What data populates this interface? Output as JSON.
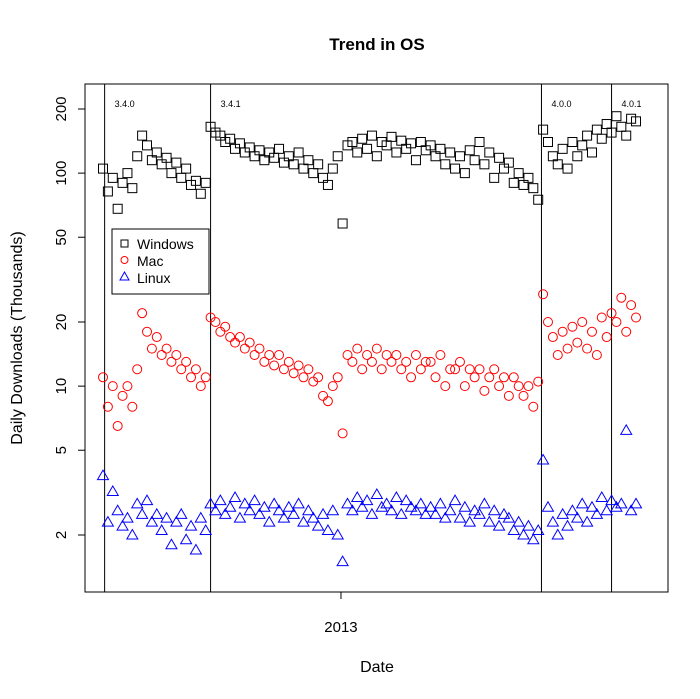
{
  "chart_data": {
    "type": "scatter",
    "title": "Trend in OS",
    "xlabel": "Date",
    "ylabel": "Daily Downloads (Thousands)",
    "yscale": "log",
    "yticks": [
      2,
      5,
      10,
      20,
      50,
      100,
      200
    ],
    "x_unit": "days since start of series",
    "xlim": [
      0,
      327
    ],
    "xticks": [
      {
        "x": 146,
        "label": "2013"
      }
    ],
    "releases": [
      {
        "x": 1,
        "label": "3.4.0"
      },
      {
        "x": 66,
        "label": "3.4.1"
      },
      {
        "x": 269,
        "label": "4.0.0"
      },
      {
        "x": 312,
        "label": "4.0.1"
      }
    ],
    "legend": {
      "position": "top-left",
      "entries": [
        "Windows",
        "Mac",
        "Linux"
      ]
    },
    "x_step": 3,
    "series": [
      {
        "name": "Windows",
        "color": "#000000",
        "marker": "square",
        "values": [
          105,
          82,
          95,
          68,
          90,
          100,
          85,
          120,
          150,
          135,
          115,
          125,
          110,
          118,
          100,
          112,
          95,
          105,
          88,
          92,
          80,
          90,
          165,
          155,
          150,
          140,
          145,
          130,
          138,
          125,
          132,
          120,
          128,
          115,
          125,
          118,
          130,
          112,
          120,
          110,
          125,
          105,
          115,
          100,
          110,
          95,
          88,
          105,
          120,
          58,
          135,
          140,
          125,
          145,
          130,
          150,
          120,
          140,
          135,
          148,
          125,
          142,
          130,
          138,
          115,
          140,
          128,
          135,
          120,
          130,
          110,
          125,
          105,
          120,
          100,
          128,
          115,
          140,
          110,
          125,
          95,
          118,
          105,
          112,
          90,
          100,
          88,
          95,
          85,
          75,
          160,
          140,
          120,
          110,
          130,
          105,
          140,
          120,
          135,
          150,
          125,
          160,
          145,
          170,
          155,
          185,
          165,
          150,
          180,
          175
        ]
      },
      {
        "name": "Mac",
        "color": "#ff0000",
        "marker": "circle",
        "values": [
          11,
          8,
          10,
          6.5,
          9,
          10,
          8,
          12,
          22,
          18,
          15,
          17,
          14,
          15,
          13,
          14,
          12,
          13,
          11,
          12,
          10,
          11,
          21,
          20,
          18,
          19,
          17,
          16,
          17,
          15,
          16,
          14,
          15,
          13,
          14,
          12.5,
          14,
          12,
          13,
          11.5,
          12.5,
          11,
          12,
          10.5,
          11,
          9,
          8.5,
          10,
          11,
          6,
          14,
          13,
          15,
          12,
          14,
          13,
          15,
          12,
          14,
          13,
          14,
          12,
          13,
          11,
          14,
          12,
          13,
          13,
          11,
          14,
          10,
          12,
          12,
          13,
          10,
          12,
          11,
          12,
          9.5,
          11,
          12,
          10,
          11,
          9,
          11,
          10,
          9,
          10,
          8,
          10.5,
          27,
          20,
          17,
          14,
          18,
          15,
          19,
          16,
          20,
          15,
          18,
          14,
          21,
          17,
          22,
          20,
          26,
          18,
          24,
          21
        ]
      },
      {
        "name": "Linux",
        "color": "#0000ff",
        "marker": "triangle",
        "values": [
          3.8,
          2.3,
          3.2,
          2.6,
          2.2,
          2.4,
          2,
          2.8,
          2.5,
          2.9,
          2.3,
          2.5,
          2.1,
          2.4,
          1.8,
          2.3,
          2.5,
          1.9,
          2.2,
          1.7,
          2.4,
          2.1,
          2.8,
          2.6,
          2.9,
          2.5,
          2.7,
          3,
          2.4,
          2.8,
          2.6,
          2.9,
          2.5,
          2.7,
          2.3,
          2.8,
          2.6,
          2.4,
          2.7,
          2.5,
          2.8,
          2.3,
          2.6,
          2.4,
          2.2,
          2.5,
          2.1,
          2.6,
          2.0,
          1.5,
          2.8,
          2.6,
          3,
          2.7,
          2.9,
          2.5,
          3.1,
          2.7,
          2.8,
          2.6,
          3,
          2.5,
          2.9,
          2.7,
          2.6,
          2.8,
          2.5,
          2.7,
          2.5,
          2.8,
          2.4,
          2.6,
          2.9,
          2.4,
          2.7,
          2.3,
          2.6,
          2.5,
          2.8,
          2.3,
          2.6,
          2.2,
          2.5,
          2.4,
          2.1,
          2.3,
          2.0,
          2.2,
          1.9,
          2.1,
          4.5,
          2.7,
          2.3,
          2.0,
          2.5,
          2.2,
          2.6,
          2.4,
          2.8,
          2.3,
          2.7,
          2.5,
          3,
          2.6,
          2.9,
          2.7,
          2.8,
          6.2,
          2.6,
          2.8
        ]
      }
    ]
  }
}
